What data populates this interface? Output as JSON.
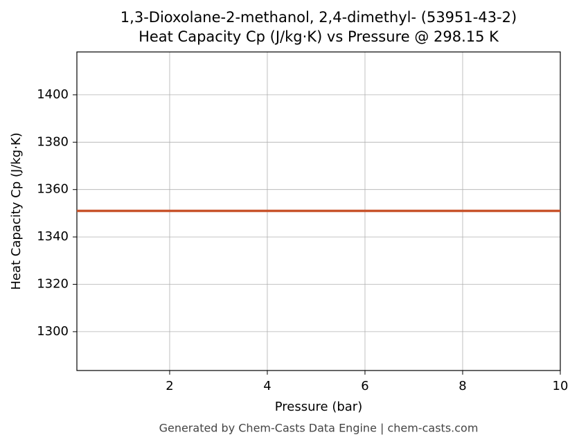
{
  "chart_data": {
    "type": "line",
    "title": "1,3-Dioxolane-2-methanol, 2,4-dimethyl- (53951-43-2)",
    "subtitle": "Heat Capacity Cp (J/kg·K) vs Pressure @ 298.15 K",
    "x_label": "Pressure (bar)",
    "y_label": "Heat Capacity Cp (J/kg·K)",
    "footer": "Generated by Chem-Casts Data Engine | chem-casts.com",
    "x": [
      0.1,
      10
    ],
    "series": [
      {
        "name": "Cp",
        "color": "#c8532b",
        "values": [
          1351,
          1351
        ]
      }
    ],
    "xlim": [
      0.1,
      10
    ],
    "xticks": [
      2,
      4,
      6,
      8,
      10
    ],
    "ylim": [
      1283.6,
      1418.1
    ],
    "yticks": [
      1300,
      1320,
      1340,
      1360,
      1380,
      1400
    ],
    "grid": true
  }
}
